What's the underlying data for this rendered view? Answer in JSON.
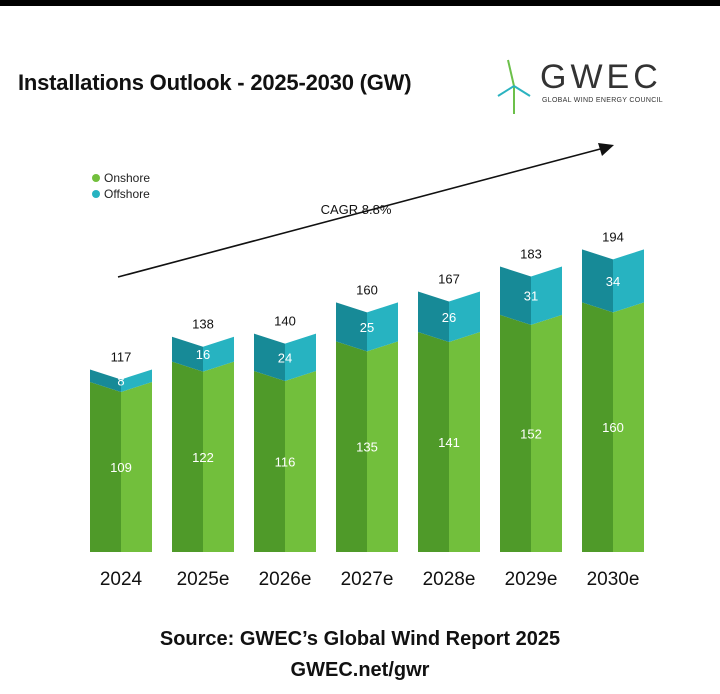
{
  "header": {
    "title": "Installations Outlook - 2025-2030 (GW)"
  },
  "logo": {
    "word": "GWEC",
    "subtitle": "GLOBAL WIND ENERGY COUNCIL"
  },
  "colors": {
    "onshore": "#72bf3c",
    "onshore_dark": "#4f9a29",
    "offshore": "#27b3c1",
    "offshore_dark": "#178a97",
    "logo_green": "#6cc04a",
    "logo_teal": "#2bb3c0"
  },
  "chart_data": {
    "type": "bar",
    "stacked": true,
    "categories": [
      "2024",
      "2025e",
      "2026e",
      "2027e",
      "2028e",
      "2029e",
      "2030e"
    ],
    "series": [
      {
        "name": "Onshore",
        "values": [
          109,
          122,
          116,
          135,
          141,
          152,
          160
        ]
      },
      {
        "name": "Offshore",
        "values": [
          8,
          16,
          24,
          25,
          26,
          31,
          34
        ]
      }
    ],
    "totals": [
      117,
      138,
      140,
      160,
      167,
      183,
      194
    ],
    "annotation": "CAGR 8.8%",
    "legend_position": "top-left",
    "grid": false,
    "ylim": [
      0,
      220
    ]
  },
  "footer": {
    "source": "Source: GWEC’s Global Wind Report 2025",
    "url": "GWEC.net/gwr"
  }
}
